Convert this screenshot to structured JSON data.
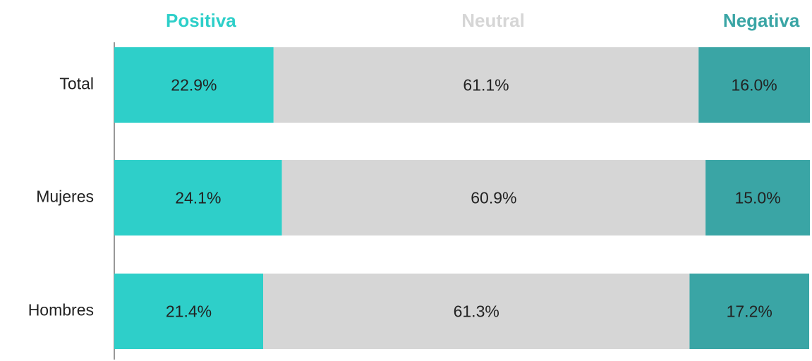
{
  "chart_data": {
    "type": "stacked-bar-horizontal",
    "categories": [
      "Total",
      "Mujeres",
      "Hombres"
    ],
    "series": [
      {
        "name": "Positiva",
        "color": "#2ecfc9",
        "values": [
          22.9,
          24.1,
          21.4
        ],
        "value_labels": [
          "22.9%",
          "24.1%",
          "21.4%"
        ]
      },
      {
        "name": "Neutral",
        "color": "#d6d6d6",
        "values": [
          61.1,
          60.9,
          61.3
        ],
        "value_labels": [
          "61.1%",
          "60.9%",
          "61.3%"
        ]
      },
      {
        "name": "Negativa",
        "color": "#3aa5a5",
        "values": [
          16.0,
          15.0,
          17.2
        ],
        "value_labels": [
          "16.0%",
          "15.0%",
          "17.2%"
        ]
      }
    ],
    "xlim": [
      0,
      100
    ]
  }
}
